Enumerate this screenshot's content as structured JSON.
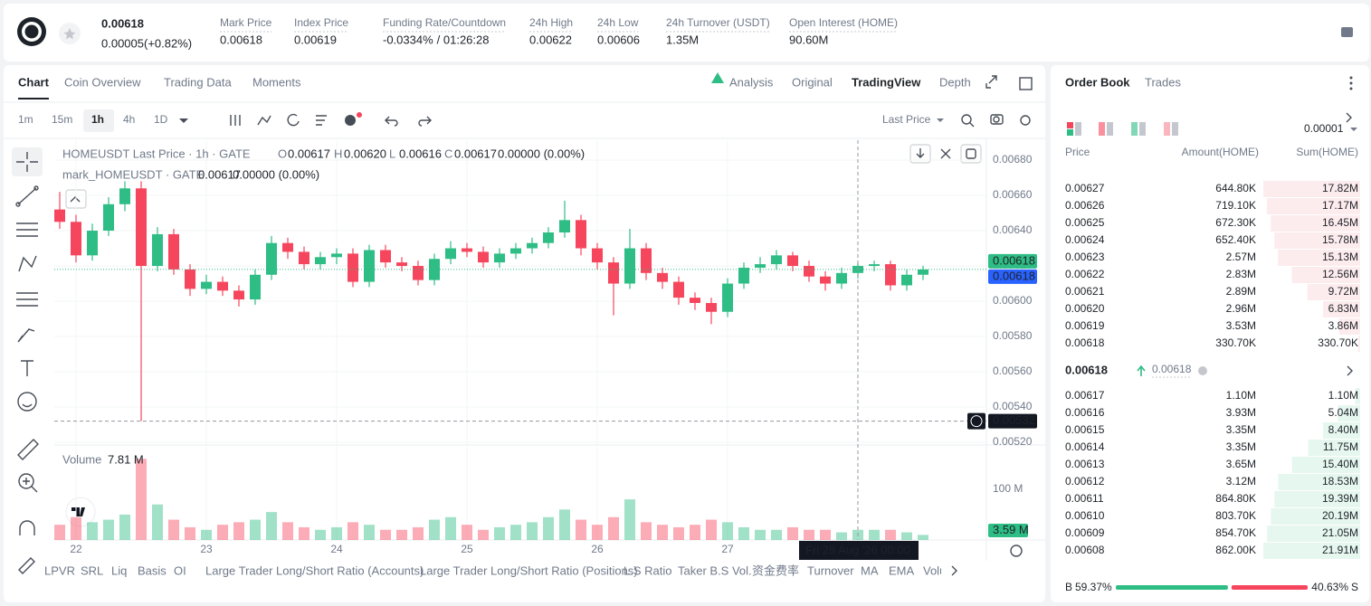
{
  "header": {
    "price": "0.00618",
    "change": "0.00005(+0.82%)",
    "stats": [
      {
        "label": "Mark Price",
        "value": "0.00618"
      },
      {
        "label": "Index Price",
        "value": "0.00619"
      },
      {
        "label": "Funding Rate/Countdown",
        "value": "-0.0334%",
        "extra": "/ 01:26:28"
      },
      {
        "label": "24h High",
        "value": "0.00622"
      },
      {
        "label": "24h Low",
        "value": "0.00606"
      },
      {
        "label": "24h Turnover (USDT)",
        "value": "1.35M"
      },
      {
        "label": "Open Interest (HOME)",
        "value": "90.60M"
      }
    ]
  },
  "chart_tabs": [
    "Chart",
    "Coin Overview",
    "Trading Data",
    "Moments"
  ],
  "view_tabs": [
    "Analysis",
    "Original",
    "TradingView",
    "Depth"
  ],
  "intervals": [
    "1m",
    "15m",
    "1h",
    "4h",
    "1D"
  ],
  "price_source": "Last Price",
  "chart_data": {
    "type": "candlestick",
    "title": "HOMEUSDT Last Price · 1h · GATE",
    "ohlc_legend": [
      {
        "key": "O",
        "value": "0.00617"
      },
      {
        "key": "H",
        "value": "0.00620"
      },
      {
        "key": "L",
        "value": "0.00616"
      },
      {
        "key": "C",
        "value": "0.00617"
      }
    ],
    "ohlc_change": "0.00000 (0.00%)",
    "mark_legend": {
      "name": "mark_HOMEUSDT · GATE",
      "value": "0.00617",
      "change": "0.00000 (0.00%)"
    },
    "up_color": "#2ebd85",
    "down_color": "#f6465d",
    "xticks": [
      {
        "value": 1,
        "label": "22"
      },
      {
        "value": 9,
        "label": "23"
      },
      {
        "value": 17,
        "label": "24"
      },
      {
        "value": 25,
        "label": "25"
      },
      {
        "value": 33,
        "label": "26"
      },
      {
        "value": 41,
        "label": "27"
      }
    ],
    "open": [
      0.00652,
      0.00645,
      0.00626,
      0.0064,
      0.00655,
      0.00664,
      0.0062,
      0.00638,
      0.00618,
      0.00607,
      0.00611,
      0.00606,
      0.00601,
      0.00615,
      0.00633,
      0.00628,
      0.00621,
      0.00625,
      0.00627,
      0.00611,
      0.00629,
      0.00622,
      0.0062,
      0.00612,
      0.00624,
      0.0063,
      0.00628,
      0.00622,
      0.00627,
      0.0063,
      0.00633,
      0.00639,
      0.00646,
      0.0063,
      0.00622,
      0.0061,
      0.0063,
      0.00616,
      0.00611,
      0.00602,
      0.00599,
      0.00594,
      0.0061,
      0.00619,
      0.00621,
      0.00626,
      0.0062,
      0.00614,
      0.0061,
      0.00616,
      0.0062,
      0.00621,
      0.00609,
      0.00615
    ],
    "high": [
      0.00662,
      0.00649,
      0.00644,
      0.00659,
      0.00668,
      0.00668,
      0.00642,
      0.00641,
      0.00621,
      0.00615,
      0.00614,
      0.00609,
      0.00618,
      0.00637,
      0.00636,
      0.00631,
      0.00628,
      0.0063,
      0.0063,
      0.00632,
      0.00632,
      0.00625,
      0.00623,
      0.00627,
      0.00634,
      0.00633,
      0.00631,
      0.0063,
      0.00633,
      0.00636,
      0.00642,
      0.00657,
      0.00649,
      0.00633,
      0.00625,
      0.00641,
      0.00633,
      0.00619,
      0.00614,
      0.00605,
      0.00602,
      0.00613,
      0.00622,
      0.00625,
      0.00629,
      0.00628,
      0.00623,
      0.00617,
      0.00619,
      0.00622,
      0.00623,
      0.00623,
      0.00618,
      0.0062
    ],
    "low": [
      0.00641,
      0.00622,
      0.00623,
      0.00637,
      0.00651,
      0.00532,
      0.00617,
      0.00615,
      0.00603,
      0.00604,
      0.00603,
      0.00597,
      0.00598,
      0.00612,
      0.00624,
      0.00618,
      0.00618,
      0.00621,
      0.00608,
      0.00608,
      0.00619,
      0.00617,
      0.00609,
      0.00609,
      0.00621,
      0.00625,
      0.00619,
      0.00619,
      0.00624,
      0.00627,
      0.0063,
      0.00636,
      0.00626,
      0.00618,
      0.00592,
      0.00607,
      0.00612,
      0.00607,
      0.00598,
      0.00595,
      0.00587,
      0.00591,
      0.00607,
      0.00616,
      0.00618,
      0.00617,
      0.00611,
      0.00606,
      0.00607,
      0.00613,
      0.00617,
      0.00606,
      0.00606,
      0.00612
    ],
    "close": [
      0.00645,
      0.00626,
      0.0064,
      0.00655,
      0.00664,
      0.0062,
      0.00638,
      0.00618,
      0.00607,
      0.00611,
      0.00606,
      0.00601,
      0.00615,
      0.00633,
      0.00628,
      0.00621,
      0.00625,
      0.00627,
      0.00611,
      0.00629,
      0.00622,
      0.0062,
      0.00612,
      0.00624,
      0.0063,
      0.00628,
      0.00622,
      0.00627,
      0.0063,
      0.00633,
      0.00639,
      0.00646,
      0.0063,
      0.00622,
      0.0061,
      0.0063,
      0.00616,
      0.00611,
      0.00602,
      0.00599,
      0.00594,
      0.0061,
      0.00619,
      0.00621,
      0.00626,
      0.0062,
      0.00614,
      0.0061,
      0.00616,
      0.0062,
      0.00621,
      0.00609,
      0.00615,
      0.00618
    ],
    "ylim": [
      0.005195,
      0.006913
    ],
    "yticks": [
      {
        "value": 0.0052,
        "label": "0.00520"
      },
      {
        "value": 0.0054,
        "label": "0.00540"
      },
      {
        "value": 0.0056,
        "label": "0.00560"
      },
      {
        "value": 0.0058,
        "label": "0.00580"
      },
      {
        "value": 0.006,
        "label": "0.00600"
      },
      {
        "value": 0.0062,
        "label": "0.00620"
      },
      {
        "value": 0.0064,
        "label": "0.00640"
      },
      {
        "value": 0.0066,
        "label": "0.00660"
      },
      {
        "value": 0.0068,
        "label": "0.00680"
      }
    ],
    "price_tags": [
      {
        "value": 0.00618,
        "label": "0.00618",
        "color": "#2ebd85"
      },
      {
        "value": 0.00618,
        "label": "0.00618",
        "color": "#2962ff"
      },
      {
        "value": 0.00532,
        "label": "0.00532",
        "color": "#131722"
      }
    ],
    "crosshair_time": "Fri 28 Aug '26  00:00",
    "volume": {
      "title": "Volume",
      "last": "7.81 M",
      "values": [
        30000000,
        45000000,
        35000000,
        40000000,
        50000000,
        160000000,
        70000000,
        40000000,
        25000000,
        20000000,
        30000000,
        35000000,
        40000000,
        55000000,
        35000000,
        25000000,
        20000000,
        25000000,
        35000000,
        30000000,
        20000000,
        20000000,
        25000000,
        40000000,
        45000000,
        30000000,
        20000000,
        25000000,
        30000000,
        35000000,
        45000000,
        60000000,
        40000000,
        30000000,
        45000000,
        80000000,
        35000000,
        30000000,
        25000000,
        30000000,
        40000000,
        35000000,
        25000000,
        20000000,
        20000000,
        25000000,
        20000000,
        20000000,
        15000000,
        20000000,
        20000000,
        20000000,
        15000000,
        10000000
      ],
      "ylim": [
        0,
        180000000
      ],
      "yticks": [
        {
          "value": 100000000,
          "label": "100 M"
        }
      ],
      "tag": {
        "value": 3590000,
        "label": "3.59 M"
      }
    }
  },
  "indicators": [
    "LPVR",
    "SRL",
    "Liq",
    "Basis",
    "OI",
    "Large Trader Long/Short Ratio (Accounts)",
    "Large Trader Long/Short Ratio (Positions)",
    "L.S Ratio",
    "Taker B.S Vol.",
    "资金费率",
    "Turnover",
    "MA",
    "EMA",
    "Volume"
  ],
  "order_book": {
    "tabs": [
      "Order Book",
      "Trades"
    ],
    "precision": "0.00001",
    "columns": [
      "Price",
      "Amount(HOME)",
      "Sum(HOME)"
    ],
    "asks": [
      {
        "price": "0.00627",
        "amount": "644.80K",
        "sum": "17.82M",
        "sum_value": 17820000
      },
      {
        "price": "0.00626",
        "amount": "719.10K",
        "sum": "17.17M",
        "sum_value": 17170000
      },
      {
        "price": "0.00625",
        "amount": "672.30K",
        "sum": "16.45M",
        "sum_value": 16450000
      },
      {
        "price": "0.00624",
        "amount": "652.40K",
        "sum": "15.78M",
        "sum_value": 15780000
      },
      {
        "price": "0.00623",
        "amount": "2.57M",
        "sum": "15.13M",
        "sum_value": 15130000
      },
      {
        "price": "0.00622",
        "amount": "2.83M",
        "sum": "12.56M",
        "sum_value": 12560000
      },
      {
        "price": "0.00621",
        "amount": "2.89M",
        "sum": "9.72M",
        "sum_value": 9720000
      },
      {
        "price": "0.00620",
        "amount": "2.96M",
        "sum": "6.83M",
        "sum_value": 6830000
      },
      {
        "price": "0.00619",
        "amount": "3.53M",
        "sum": "3.86M",
        "sum_value": 3860000
      },
      {
        "price": "0.00618",
        "amount": "330.70K",
        "sum": "330.70K",
        "sum_value": 330700
      }
    ],
    "last_price": "0.00618",
    "mark_price": "0.00618",
    "bids": [
      {
        "price": "0.00617",
        "amount": "1.10M",
        "sum": "1.10M",
        "sum_value": 1100000
      },
      {
        "price": "0.00616",
        "amount": "3.93M",
        "sum": "5.04M",
        "sum_value": 5040000
      },
      {
        "price": "0.00615",
        "amount": "3.35M",
        "sum": "8.40M",
        "sum_value": 8400000
      },
      {
        "price": "0.00614",
        "amount": "3.35M",
        "sum": "11.75M",
        "sum_value": 11750000
      },
      {
        "price": "0.00613",
        "amount": "3.65M",
        "sum": "15.40M",
        "sum_value": 15400000
      },
      {
        "price": "0.00612",
        "amount": "3.12M",
        "sum": "18.53M",
        "sum_value": 18530000
      },
      {
        "price": "0.00611",
        "amount": "864.80K",
        "sum": "19.39M",
        "sum_value": 19390000
      },
      {
        "price": "0.00610",
        "amount": "803.70K",
        "sum": "20.19M",
        "sum_value": 20190000
      },
      {
        "price": "0.00609",
        "amount": "854.70K",
        "sum": "21.05M",
        "sum_value": 21050000
      },
      {
        "price": "0.00608",
        "amount": "862.00K",
        "sum": "21.91M",
        "sum_value": 21910000
      }
    ],
    "ratio": {
      "buy": {
        "label": "B",
        "value": 59.37,
        "value_label": "59.37%"
      },
      "sell": {
        "label": "S",
        "value": 40.63,
        "value_label": "40.63%"
      }
    }
  }
}
